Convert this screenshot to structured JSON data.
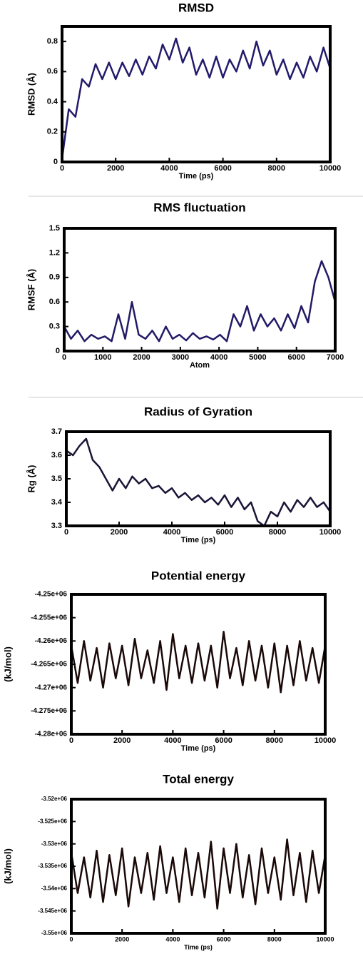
{
  "chart_data": [
    {
      "type": "line",
      "title": "RMSD",
      "x_label": "Time (ps)",
      "y_label": "RMSD (Å)",
      "xlim": [
        0,
        10000
      ],
      "xticks": [
        0,
        2000,
        4000,
        6000,
        8000,
        10000
      ],
      "ylim": [
        0,
        0.9
      ],
      "yticks": [
        0,
        0.2,
        0.4,
        0.6,
        0.8
      ],
      "grid": false,
      "series": [
        {
          "color": "#221a6b",
          "x": [
            0,
            250,
            500,
            750,
            1000,
            1250,
            1500,
            1750,
            2000,
            2250,
            2500,
            2750,
            3000,
            3250,
            3500,
            3750,
            4000,
            4250,
            4500,
            4750,
            5000,
            5250,
            5500,
            5750,
            6000,
            6250,
            6500,
            6750,
            7000,
            7250,
            7500,
            7750,
            8000,
            8250,
            8500,
            8750,
            9000,
            9250,
            9500,
            9750,
            10000
          ],
          "values": [
            0.02,
            0.35,
            0.3,
            0.55,
            0.5,
            0.65,
            0.55,
            0.66,
            0.55,
            0.66,
            0.57,
            0.68,
            0.58,
            0.7,
            0.62,
            0.78,
            0.68,
            0.82,
            0.66,
            0.76,
            0.58,
            0.68,
            0.56,
            0.7,
            0.56,
            0.68,
            0.6,
            0.74,
            0.62,
            0.8,
            0.64,
            0.74,
            0.58,
            0.68,
            0.55,
            0.66,
            0.56,
            0.7,
            0.6,
            0.76,
            0.62
          ]
        }
      ]
    },
    {
      "type": "line",
      "title": "RMS fluctuation",
      "x_label": "Atom",
      "y_label": "RMSF  (Å)",
      "xlim": [
        0,
        7000
      ],
      "xticks": [
        0,
        1000,
        2000,
        3000,
        4000,
        5000,
        6000,
        7000
      ],
      "ylim": [
        0,
        1.5
      ],
      "yticks": [
        0,
        0.3,
        0.6,
        0.9,
        1.2,
        1.5
      ],
      "grid": false,
      "series": [
        {
          "color": "#231a66",
          "x": [
            0,
            175,
            350,
            525,
            700,
            875,
            1050,
            1225,
            1400,
            1575,
            1750,
            1925,
            2100,
            2275,
            2450,
            2625,
            2800,
            2975,
            3150,
            3325,
            3500,
            3675,
            3850,
            4025,
            4200,
            4375,
            4550,
            4725,
            4900,
            5075,
            5250,
            5425,
            5600,
            5775,
            5950,
            6125,
            6300,
            6475,
            6650,
            6825,
            7000
          ],
          "values": [
            0.3,
            0.15,
            0.25,
            0.12,
            0.2,
            0.15,
            0.18,
            0.12,
            0.45,
            0.15,
            0.6,
            0.2,
            0.15,
            0.25,
            0.12,
            0.3,
            0.15,
            0.2,
            0.13,
            0.22,
            0.15,
            0.18,
            0.14,
            0.2,
            0.12,
            0.45,
            0.3,
            0.55,
            0.25,
            0.45,
            0.3,
            0.4,
            0.25,
            0.45,
            0.28,
            0.55,
            0.35,
            0.85,
            1.1,
            0.9,
            0.6
          ]
        }
      ]
    },
    {
      "type": "line",
      "title": "Radius of Gyration",
      "x_label": "Time (ps)",
      "y_label": "Rg (Å)",
      "xlim": [
        0,
        10000
      ],
      "xticks": [
        0,
        2000,
        4000,
        6000,
        8000,
        10000
      ],
      "ylim": [
        3.3,
        3.7
      ],
      "yticks": [
        3.3,
        3.4,
        3.5,
        3.6,
        3.7
      ],
      "grid": false,
      "series": [
        {
          "color": "#1a1436",
          "x": [
            0,
            250,
            500,
            750,
            1000,
            1250,
            1500,
            1750,
            2000,
            2250,
            2500,
            2750,
            3000,
            3250,
            3500,
            3750,
            4000,
            4250,
            4500,
            4750,
            5000,
            5250,
            5500,
            5750,
            6000,
            6250,
            6500,
            6750,
            7000,
            7250,
            7500,
            7750,
            8000,
            8250,
            8500,
            8750,
            9000,
            9250,
            9500,
            9750,
            10000
          ],
          "values": [
            3.62,
            3.6,
            3.64,
            3.67,
            3.58,
            3.55,
            3.5,
            3.45,
            3.5,
            3.46,
            3.51,
            3.48,
            3.5,
            3.46,
            3.47,
            3.44,
            3.46,
            3.42,
            3.44,
            3.41,
            3.43,
            3.4,
            3.42,
            3.39,
            3.43,
            3.38,
            3.42,
            3.37,
            3.4,
            3.32,
            3.3,
            3.36,
            3.34,
            3.4,
            3.36,
            3.41,
            3.38,
            3.42,
            3.38,
            3.4,
            3.36
          ]
        }
      ]
    },
    {
      "type": "line",
      "title": "Potential energy",
      "x_label": "Time (ps)",
      "y_label": "(kJ/mol)",
      "xlim": [
        0,
        10000
      ],
      "xticks": [
        0,
        2000,
        4000,
        6000,
        8000,
        10000
      ],
      "ylim": [
        -4280000,
        -4250000
      ],
      "yticks": [
        {
          "value": -4250000,
          "label": "-4.25e+06"
        },
        {
          "value": -4255000,
          "label": "-4.255e+06"
        },
        {
          "value": -4260000,
          "label": "-4.26e+06"
        },
        {
          "value": -4265000,
          "label": "-4.265e+06"
        },
        {
          "value": -4270000,
          "label": "-4.27e+06"
        },
        {
          "value": -4275000,
          "label": "-4.275e+06"
        },
        {
          "value": -4280000,
          "label": "-4.28e+06"
        }
      ],
      "grid": false,
      "series": [
        {
          "color": "#1a0808",
          "x": [
            0,
            250,
            500,
            750,
            1000,
            1250,
            1500,
            1750,
            2000,
            2250,
            2500,
            2750,
            3000,
            3250,
            3500,
            3750,
            4000,
            4250,
            4500,
            4750,
            5000,
            5250,
            5500,
            5750,
            6000,
            6250,
            6500,
            6750,
            7000,
            7250,
            7500,
            7750,
            8000,
            8250,
            8500,
            8750,
            9000,
            9250,
            9500,
            9750,
            10000
          ],
          "values": [
            -4261000,
            -4269000,
            -4260000,
            -4268500,
            -4261500,
            -4270000,
            -4260500,
            -4268000,
            -4261000,
            -4269500,
            -4259500,
            -4268000,
            -4262000,
            -4269000,
            -4260000,
            -4270500,
            -4258500,
            -4268000,
            -4261000,
            -4269000,
            -4260500,
            -4268500,
            -4261000,
            -4270000,
            -4258000,
            -4268000,
            -4261500,
            -4269500,
            -4260000,
            -4268500,
            -4261000,
            -4270000,
            -4260500,
            -4271000,
            -4261000,
            -4269500,
            -4260000,
            -4268500,
            -4261500,
            -4269000,
            -4261000
          ]
        }
      ]
    },
    {
      "type": "line",
      "title": "Total energy",
      "x_label": "Time (ps)",
      "y_label": "(kJ/mol)",
      "xlim": [
        0,
        10000
      ],
      "xticks": [
        0,
        2000,
        4000,
        6000,
        8000,
        10000
      ],
      "ylim": [
        -3550000,
        -3520000
      ],
      "yticks": [
        {
          "value": -3520000,
          "label": "-3.52e+06"
        },
        {
          "value": -3525000,
          "label": "-3.525e+06"
        },
        {
          "value": -3530000,
          "label": "-3.53e+06"
        },
        {
          "value": -3535000,
          "label": "-3.535e+06"
        },
        {
          "value": -3540000,
          "label": "-3.54e+06"
        },
        {
          "value": -3545000,
          "label": "-3.545e+06"
        },
        {
          "value": -3550000,
          "label": "-3.55e+06"
        }
      ],
      "grid": false,
      "series": [
        {
          "color": "#1a0808",
          "x": [
            0,
            250,
            500,
            750,
            1000,
            1250,
            1500,
            1750,
            2000,
            2250,
            2500,
            2750,
            3000,
            3250,
            3500,
            3750,
            4000,
            4250,
            4500,
            4750,
            5000,
            5250,
            5500,
            5750,
            6000,
            6250,
            6500,
            6750,
            7000,
            7250,
            7500,
            7750,
            8000,
            8250,
            8500,
            8750,
            9000,
            9250,
            9500,
            9750,
            10000
          ],
          "values": [
            -3532000,
            -3541000,
            -3533000,
            -3542000,
            -3531500,
            -3543000,
            -3532500,
            -3541500,
            -3531000,
            -3544000,
            -3533000,
            -3541000,
            -3532000,
            -3542500,
            -3530500,
            -3541000,
            -3533000,
            -3543000,
            -3531000,
            -3541500,
            -3532000,
            -3542000,
            -3529500,
            -3544500,
            -3531000,
            -3541000,
            -3530000,
            -3542000,
            -3532500,
            -3543500,
            -3531000,
            -3541000,
            -3533000,
            -3542500,
            -3529000,
            -3541500,
            -3532000,
            -3543000,
            -3531500,
            -3541000,
            -3532500
          ]
        }
      ]
    }
  ]
}
